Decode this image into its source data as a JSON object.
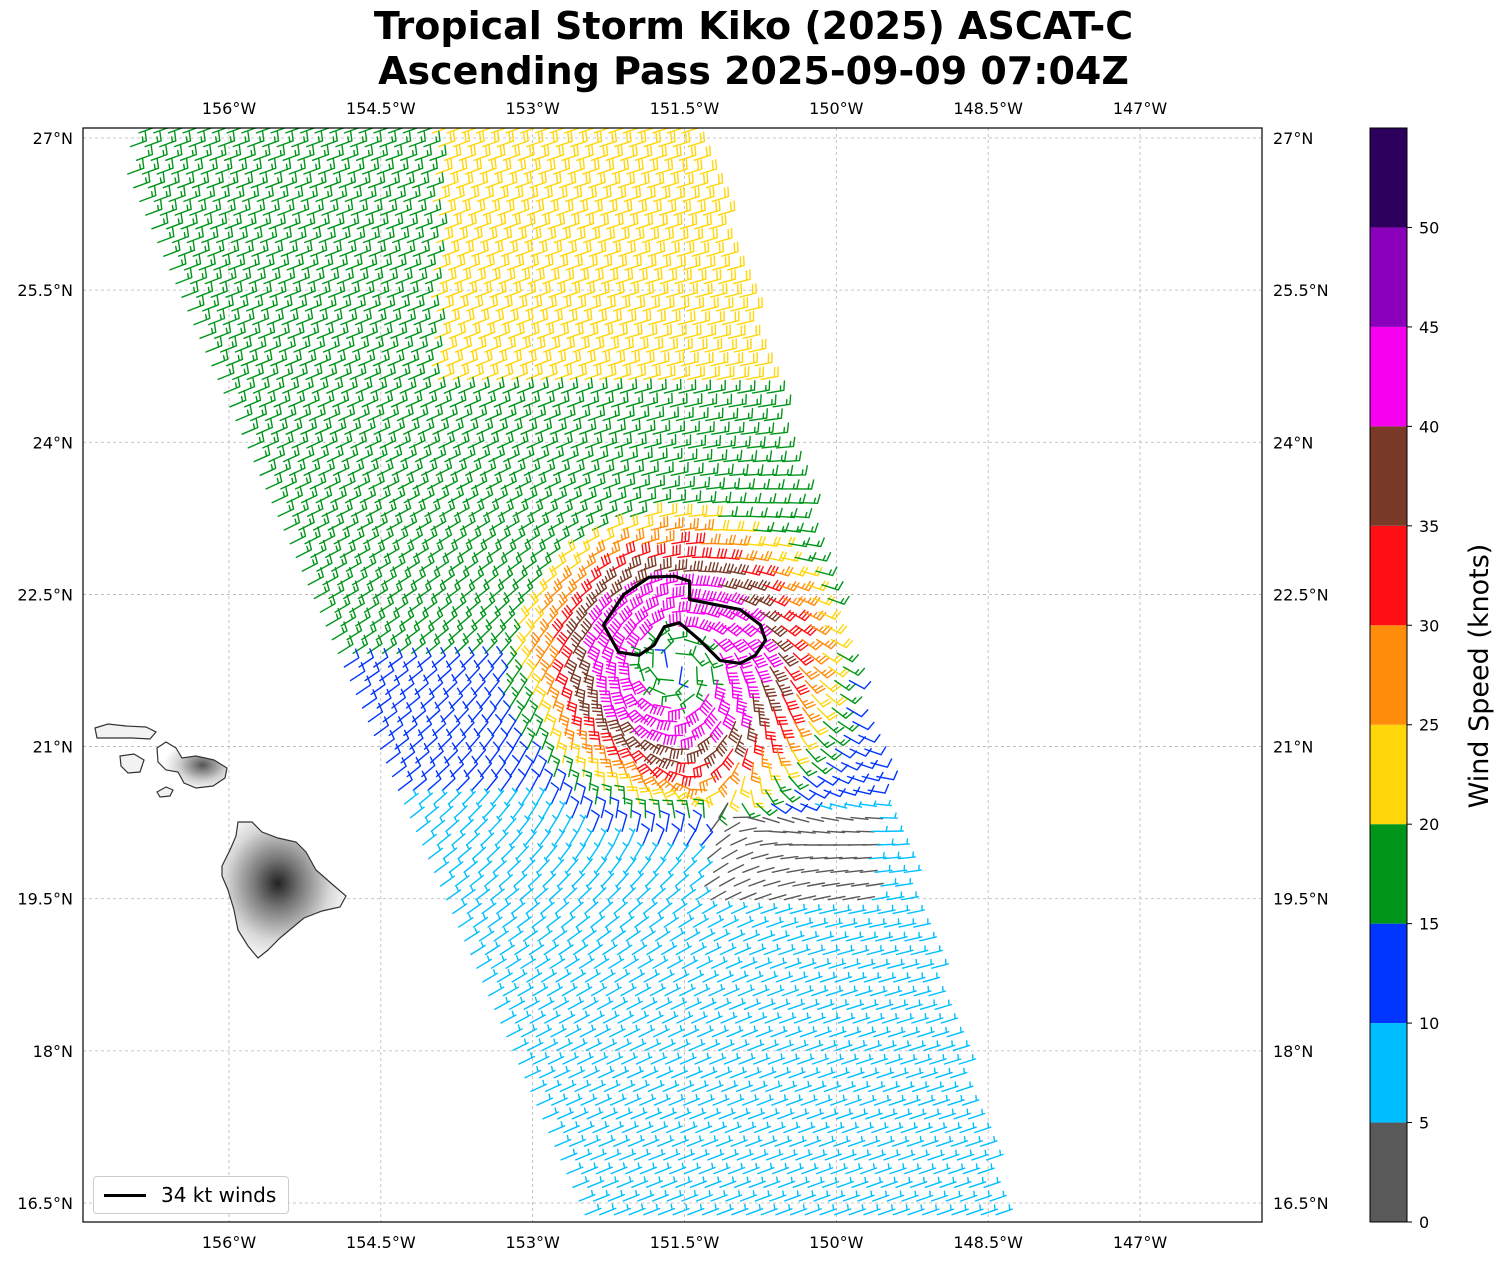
{
  "title": {
    "line1": "Tropical Storm Kiko (2025) ASCAT-C",
    "line2": "Ascending Pass 2025-09-09 07:04Z"
  },
  "map": {
    "lon_range": [
      -157,
      -145.5
    ],
    "lat_range": [
      16.3,
      27.1
    ],
    "lon_ticks": [
      {
        "value": -156,
        "label": "156°W"
      },
      {
        "value": -154.5,
        "label": "154.5°W"
      },
      {
        "value": -153,
        "label": "153°W"
      },
      {
        "value": -151.5,
        "label": "151.5°W"
      },
      {
        "value": -150,
        "label": "150°W"
      },
      {
        "value": -148.5,
        "label": "148.5°W"
      },
      {
        "value": -147,
        "label": "147°W"
      }
    ],
    "lat_ticks": [
      {
        "value": 27,
        "label": "27°N"
      },
      {
        "value": 25.5,
        "label": "25.5°N"
      },
      {
        "value": 24,
        "label": "24°N"
      },
      {
        "value": 22.5,
        "label": "22.5°N"
      },
      {
        "value": 21,
        "label": "21°N"
      },
      {
        "value": 19.5,
        "label": "19.5°N"
      },
      {
        "value": 18,
        "label": "18°N"
      },
      {
        "value": 16.5,
        "label": "16.5°N"
      }
    ],
    "gridlines": true,
    "storm_center": {
      "lon": -151.6,
      "lat": 21.8
    },
    "land": "Hawaiian Islands",
    "swath_edges": [
      {
        "lon": -157.2,
        "lat": 27.1
      },
      {
        "lon": -152.4,
        "lat": 16.2
      },
      {
        "lon": -151.4,
        "lat": 27.0
      },
      {
        "lon": -148.3,
        "lat": 16.2
      }
    ]
  },
  "colorbar": {
    "label": "Wind Speed (knots)",
    "ticks": [
      "0",
      "5",
      "10",
      "15",
      "20",
      "25",
      "30",
      "35",
      "40",
      "45",
      "50"
    ],
    "bins": [
      {
        "min": 0,
        "max": 5,
        "color": "#595959"
      },
      {
        "min": 5,
        "max": 10,
        "color": "#00bfff"
      },
      {
        "min": 10,
        "max": 15,
        "color": "#0035ff"
      },
      {
        "min": 15,
        "max": 20,
        "color": "#00961a"
      },
      {
        "min": 20,
        "max": 25,
        "color": "#ffd60a"
      },
      {
        "min": 25,
        "max": 30,
        "color": "#ff8c0a"
      },
      {
        "min": 30,
        "max": 35,
        "color": "#ff0f14"
      },
      {
        "min": 35,
        "max": 40,
        "color": "#7a3a28"
      },
      {
        "min": 40,
        "max": 45,
        "color": "#f600f0"
      },
      {
        "min": 45,
        "max": 50,
        "color": "#8a00bb"
      },
      {
        "min": 50,
        "max": 55,
        "color": "#2c005c"
      }
    ]
  },
  "wind_34kt_contour": [
    {
      "lon": -152.3,
      "lat": 22.2
    },
    {
      "lon": -152.1,
      "lat": 22.5
    },
    {
      "lon": -151.85,
      "lat": 22.67
    },
    {
      "lon": -151.6,
      "lat": 22.68
    },
    {
      "lon": -151.45,
      "lat": 22.63
    },
    {
      "lon": -151.45,
      "lat": 22.45
    },
    {
      "lon": -151.2,
      "lat": 22.4
    },
    {
      "lon": -150.95,
      "lat": 22.35
    },
    {
      "lon": -150.75,
      "lat": 22.2
    },
    {
      "lon": -150.7,
      "lat": 22.05
    },
    {
      "lon": -150.8,
      "lat": 21.9
    },
    {
      "lon": -150.95,
      "lat": 21.82
    },
    {
      "lon": -151.15,
      "lat": 21.85
    },
    {
      "lon": -151.35,
      "lat": 22.05
    },
    {
      "lon": -151.55,
      "lat": 22.22
    },
    {
      "lon": -151.7,
      "lat": 22.18
    },
    {
      "lon": -151.8,
      "lat": 22.0
    },
    {
      "lon": -151.95,
      "lat": 21.9
    },
    {
      "lon": -152.15,
      "lat": 21.93
    },
    {
      "lon": -152.3,
      "lat": 22.2
    }
  ],
  "legend": {
    "label": "34 kt winds",
    "line_color": "#000000"
  }
}
